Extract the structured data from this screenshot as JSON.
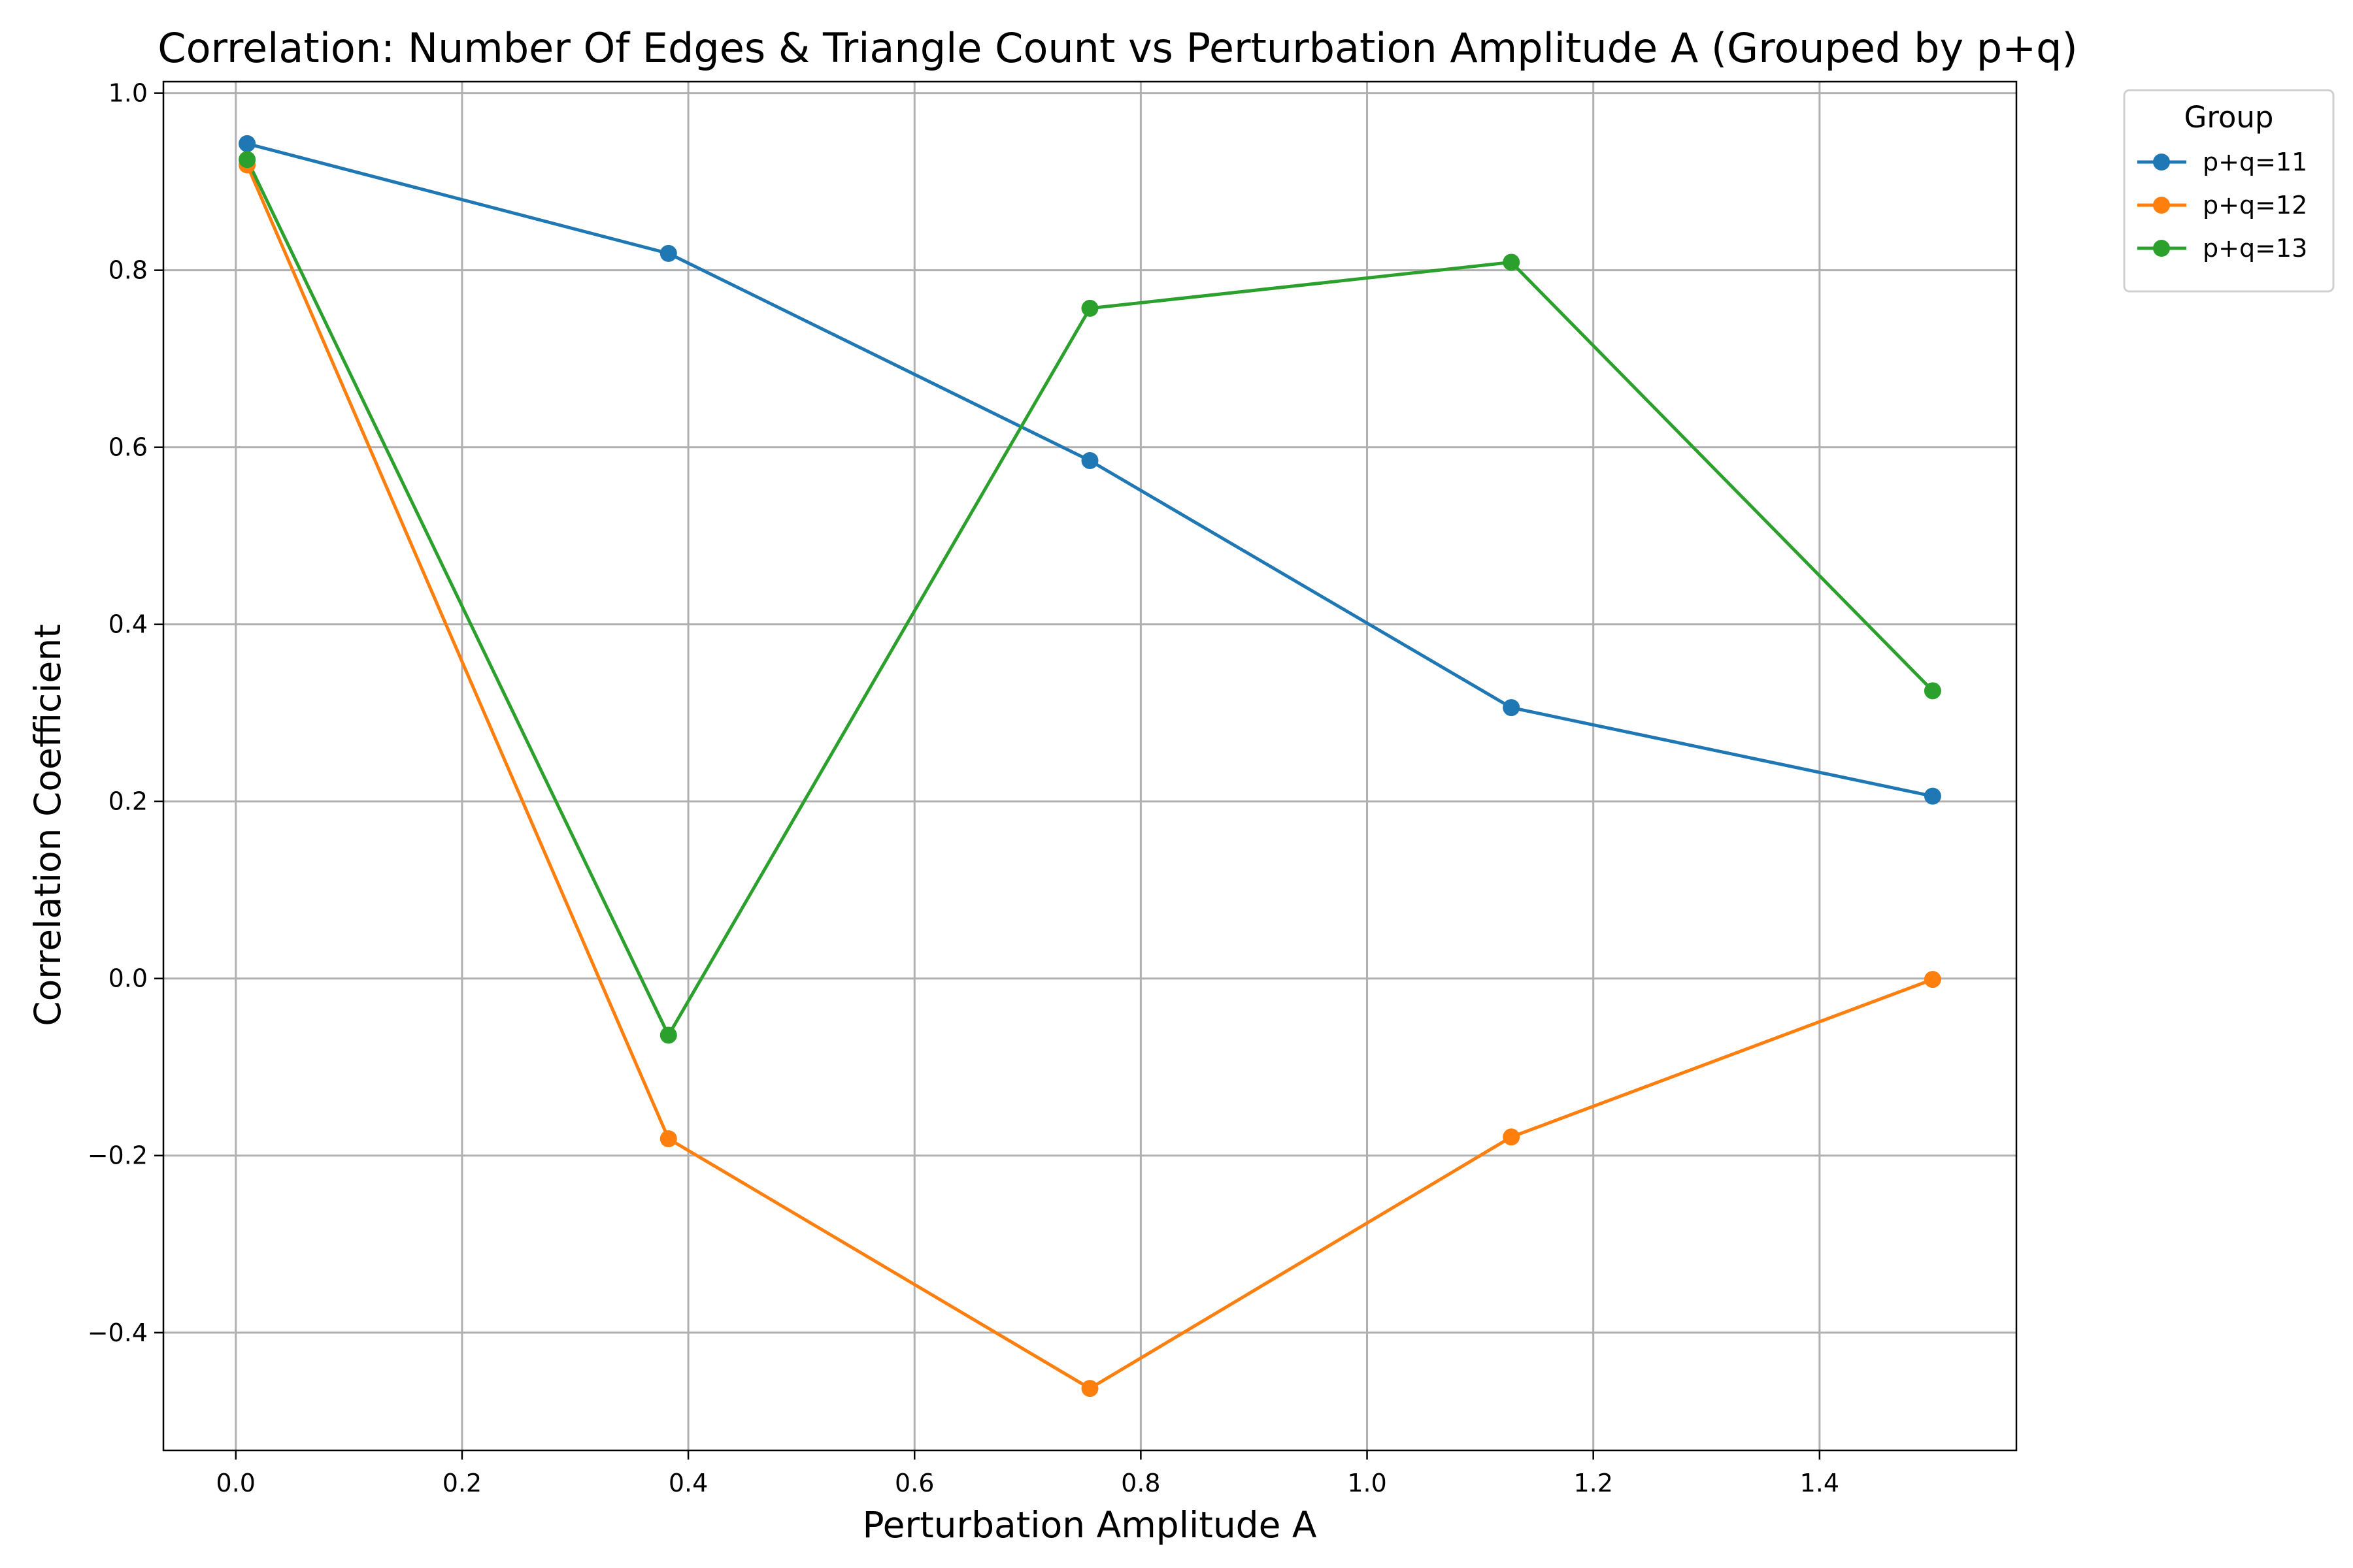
{
  "chart_data": {
    "type": "line",
    "title": "Correlation: Number Of Edges & Triangle Count vs Perturbation Amplitude A (Grouped by p+q)",
    "xlabel": "Perturbation Amplitude A",
    "ylabel": "Correlation Coefficient",
    "xlim": [
      -0.064,
      1.574
    ],
    "ylim": [
      -0.533,
      1.013
    ],
    "xticks": [
      0.0,
      0.2,
      0.4,
      0.6,
      0.8,
      1.0,
      1.2,
      1.4
    ],
    "xtick_labels": [
      "0.0",
      "0.2",
      "0.4",
      "0.6",
      "0.8",
      "1.0",
      "1.2",
      "1.4"
    ],
    "yticks": [
      -0.4,
      -0.2,
      0.0,
      0.2,
      0.4,
      0.6,
      0.8,
      1.0
    ],
    "ytick_labels": [
      "−0.4",
      "−0.2",
      "0.0",
      "0.2",
      "0.4",
      "0.6",
      "0.8",
      "1.0"
    ],
    "grid": true,
    "legend": {
      "title": "Group",
      "placement": "outside-upper-right"
    },
    "x": [
      0.01,
      0.3825,
      0.755,
      1.1275,
      1.5
    ],
    "series": [
      {
        "name": "p+q=11",
        "color": "#1f77b4",
        "marker": "circle",
        "values": [
          0.943,
          0.819,
          0.585,
          0.306,
          0.206
        ]
      },
      {
        "name": "p+q=12",
        "color": "#ff7f0e",
        "marker": "circle",
        "values": [
          0.919,
          -0.181,
          -0.463,
          -0.179,
          -0.001
        ]
      },
      {
        "name": "p+q=13",
        "color": "#2ca02c",
        "marker": "circle",
        "values": [
          0.925,
          -0.064,
          0.757,
          0.809,
          0.325
        ]
      }
    ]
  }
}
